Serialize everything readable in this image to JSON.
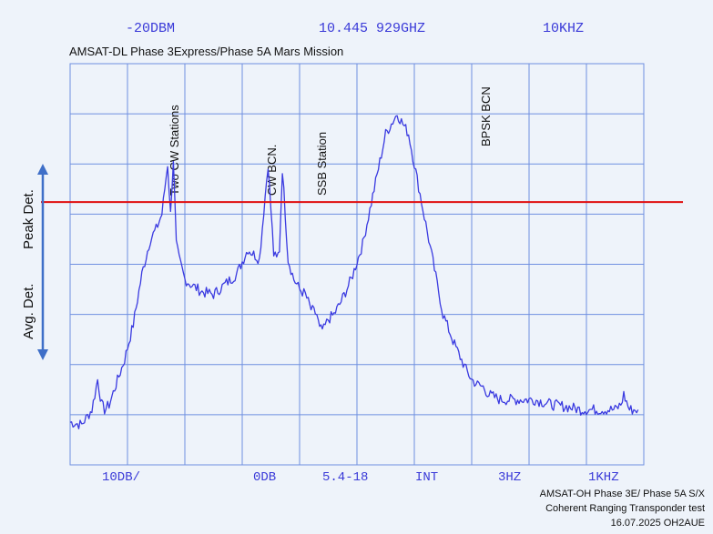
{
  "header": {
    "ref_level": "-20DBM",
    "center_freq": "10.445 929GHZ",
    "span": "10KHZ"
  },
  "title": "AMSAT-DL Phase 3Express/Phase 5A Mars Mission",
  "footer": {
    "scale": "10DB/",
    "attenuation": "0DB",
    "version": "5.4-18",
    "ref": "INT",
    "vbw": "3HZ",
    "rbw": "1KHZ"
  },
  "annotations": {
    "two_cw": "Two CW Stations",
    "cw_bcn": "CW BCN.",
    "ssb": "SSB Station",
    "bpsk": "BPSK BCN"
  },
  "side_labels": {
    "peak": "Peak Det.",
    "avg": "Avg. Det."
  },
  "credits": {
    "line1": "AMSAT-OH Phase 3E/ Phase 5A S/X",
    "line2": "Coherent Ranging Transponder test",
    "line3": "16.07.2025 OH2AUE"
  },
  "colors": {
    "trace": "#3a3ae0",
    "grid": "#6f8fe0",
    "reference_line": "#e01010",
    "arrow": "#3f6fc8",
    "background": "#eef3fa"
  },
  "chart_data": {
    "type": "line",
    "title": "AMSAT-DL Phase 3Express/Phase 5A Mars Mission",
    "xlabel": "",
    "ylabel": "",
    "x_range": [
      0,
      10
    ],
    "y_range": [
      -100,
      -20
    ],
    "grid": true,
    "reference_line_y": -47.6,
    "series": [
      {
        "x": [
          0,
          0.2,
          0.38,
          0.48,
          0.55,
          0.6,
          0.68,
          0.8,
          0.95,
          1.1,
          1.25,
          1.4,
          1.5,
          1.6,
          1.7,
          1.75,
          1.8,
          1.85,
          1.9,
          2.0,
          2.1,
          2.3,
          2.5,
          2.7,
          2.9,
          3.1,
          3.3,
          3.45,
          3.55,
          3.6,
          3.65,
          3.7,
          3.8,
          3.9,
          4.0,
          4.1,
          4.2,
          4.3,
          4.35,
          4.42,
          4.5,
          4.6,
          4.7,
          4.9,
          5.1,
          5.3,
          5.5,
          5.7,
          5.9,
          6.1,
          6.3,
          6.5,
          6.7,
          6.9,
          7.0,
          7.1,
          7.2,
          7.3,
          7.4,
          7.5,
          7.7,
          7.9,
          8.1,
          8.4,
          8.7,
          8.9,
          9.05,
          9.15,
          9.3,
          9.5,
          9.6,
          9.65,
          9.75,
          9.85,
          9.9
        ],
        "y": [
          -91.5,
          -92,
          -89,
          -83,
          -88,
          -89,
          -88,
          -84,
          -79,
          -72,
          -62,
          -55,
          -53,
          -50,
          -40,
          -50,
          -39,
          -56,
          -59,
          -63,
          -64,
          -65.5,
          -66,
          -64,
          -62,
          -57,
          -59,
          -40,
          -58,
          -59,
          -57,
          -41,
          -59,
          -63,
          -65,
          -66,
          -69,
          -70,
          -73,
          -73,
          -71,
          -70,
          -68,
          -63,
          -56,
          -45,
          -34,
          -30,
          -34,
          -46,
          -58,
          -70,
          -76,
          -81,
          -83,
          -84,
          -84.5,
          -86,
          -86.5,
          -87,
          -87,
          -87,
          -87,
          -88,
          -88.5,
          -89,
          -89,
          -89,
          -89,
          -89,
          -88,
          -86,
          -89,
          -89,
          -89
        ]
      }
    ]
  }
}
